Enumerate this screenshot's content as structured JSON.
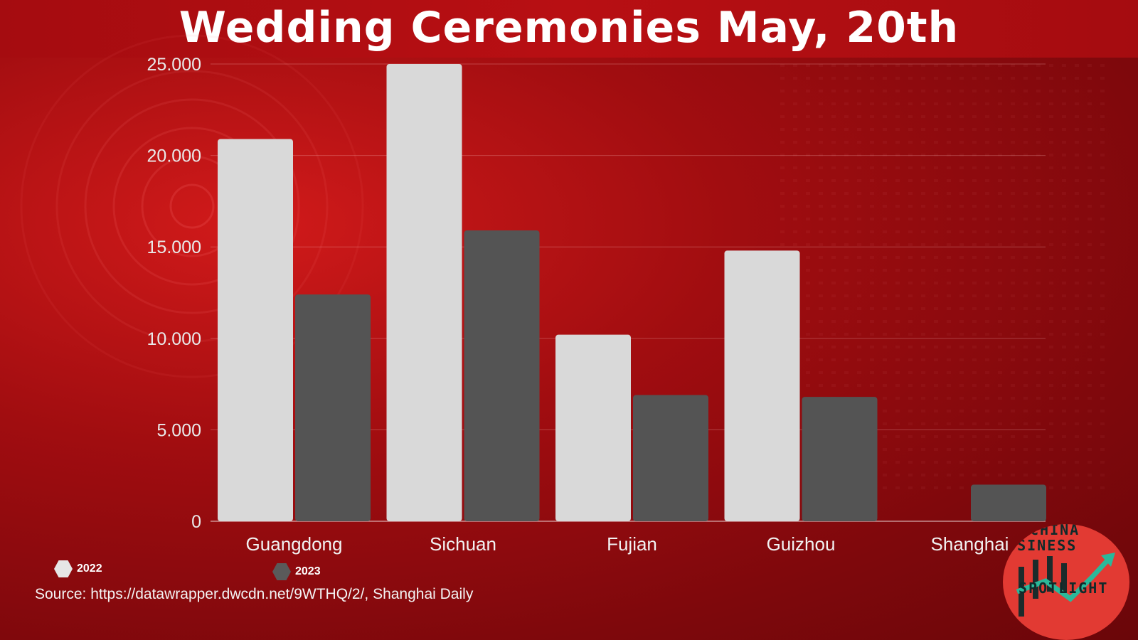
{
  "title": "Wedding Ceremonies May, 20th",
  "source": "Source: https://datawrapper.dwcdn.net/9WTHQ/2/, Shanghai Daily",
  "logo": {
    "line1": "CHINA",
    "line2": "BUSINESS",
    "line3": "SPOTLIGHT"
  },
  "colors": {
    "s2022": "#d9d9d9",
    "s2023": "#545454",
    "background": "#a10d10"
  },
  "chart_data": {
    "type": "bar",
    "categories": [
      "Guangdong",
      "Sichuan",
      "Fujian",
      "Guizhou",
      "Shanghai"
    ],
    "series": [
      {
        "name": "2022",
        "values": [
          20900,
          25000,
          10200,
          14800,
          0
        ]
      },
      {
        "name": "2023",
        "values": [
          12400,
          15900,
          6900,
          6800,
          2000
        ]
      }
    ],
    "yticks": [
      "0",
      "5.000",
      "10.000",
      "15.000",
      "20.000",
      "25.000"
    ],
    "ytick_values": [
      0,
      5000,
      10000,
      15000,
      20000,
      25000
    ],
    "ylim": [
      0,
      25000
    ],
    "grid": true,
    "legend": "bottom-left"
  }
}
